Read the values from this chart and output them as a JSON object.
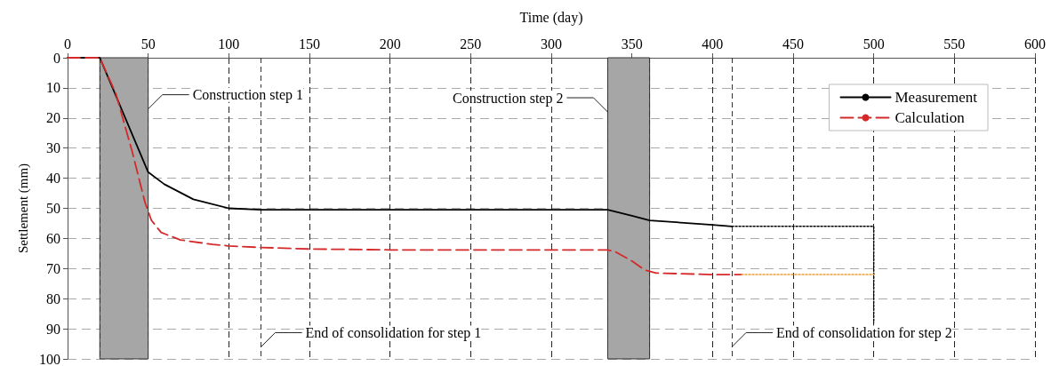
{
  "chart_data": {
    "type": "line",
    "xlabel": "Time (day)",
    "ylabel": "Settlement (mm)",
    "xlim": [
      0,
      600
    ],
    "xticks": [
      0,
      50,
      100,
      150,
      200,
      250,
      300,
      350,
      400,
      450,
      500,
      550,
      600
    ],
    "ylim": [
      100,
      0
    ],
    "yticks": [
      0,
      10,
      20,
      30,
      40,
      50,
      60,
      70,
      80,
      90,
      100
    ],
    "grid": true,
    "legend": "top right",
    "marker": "none",
    "series": [
      {
        "name": "Measurement",
        "color": "#000000",
        "line_style": "solid",
        "x": [
          0,
          20,
          50,
          60,
          78,
          100,
          120,
          335,
          350,
          361,
          400,
          412
        ],
        "values": [
          0,
          0,
          38,
          42,
          47,
          50,
          50.5,
          50.5,
          52.5,
          54,
          55.5,
          56
        ]
      },
      {
        "name": "Calculation",
        "color": "#d42a2a",
        "line_style": "dashed",
        "x": [
          0,
          20,
          30,
          40,
          48,
          52,
          58,
          70,
          90,
          100,
          120,
          150,
          200,
          335,
          340,
          350,
          358,
          365,
          400,
          418
        ],
        "values": [
          0,
          0,
          12,
          31,
          48,
          54,
          58,
          60.5,
          62,
          62.5,
          63,
          63.5,
          63.8,
          63.8,
          64.5,
          67.5,
          70.5,
          71.5,
          72,
          72
        ]
      },
      {
        "color": "#000000",
        "line_style": "dotted",
        "x": [
          412,
          500,
          500
        ],
        "values": [
          56,
          56,
          88
        ]
      },
      {
        "color": "#f0a030",
        "line_style": "dotted",
        "x": [
          418,
          500
        ],
        "values": [
          72,
          72
        ]
      }
    ],
    "bands": [
      {
        "axis": "x",
        "from": 20,
        "to": 50,
        "color": "#a6a6a6"
      },
      {
        "axis": "x",
        "from": 335,
        "to": 361,
        "color": "#a6a6a6"
      }
    ],
    "ref_lines": [
      {
        "axis": "x",
        "value": 20,
        "line_style": "dashed"
      },
      {
        "axis": "x",
        "value": 120,
        "line_style": "dashed"
      },
      {
        "axis": "x",
        "value": 335,
        "line_style": "dashed"
      },
      {
        "axis": "x",
        "value": 361,
        "line_style": "dashed"
      },
      {
        "axis": "x",
        "value": 412,
        "line_style": "dashed"
      }
    ],
    "annotations": [
      {
        "text": "Construction step 1",
        "x": 50,
        "y": 17
      },
      {
        "text": "Construction step 2",
        "x": 335,
        "y": 18
      },
      {
        "text": "End of consolidation for step 1",
        "x": 120,
        "y": 96
      },
      {
        "text": "End of consolidation for step 2",
        "x": 412,
        "y": 96
      }
    ]
  }
}
